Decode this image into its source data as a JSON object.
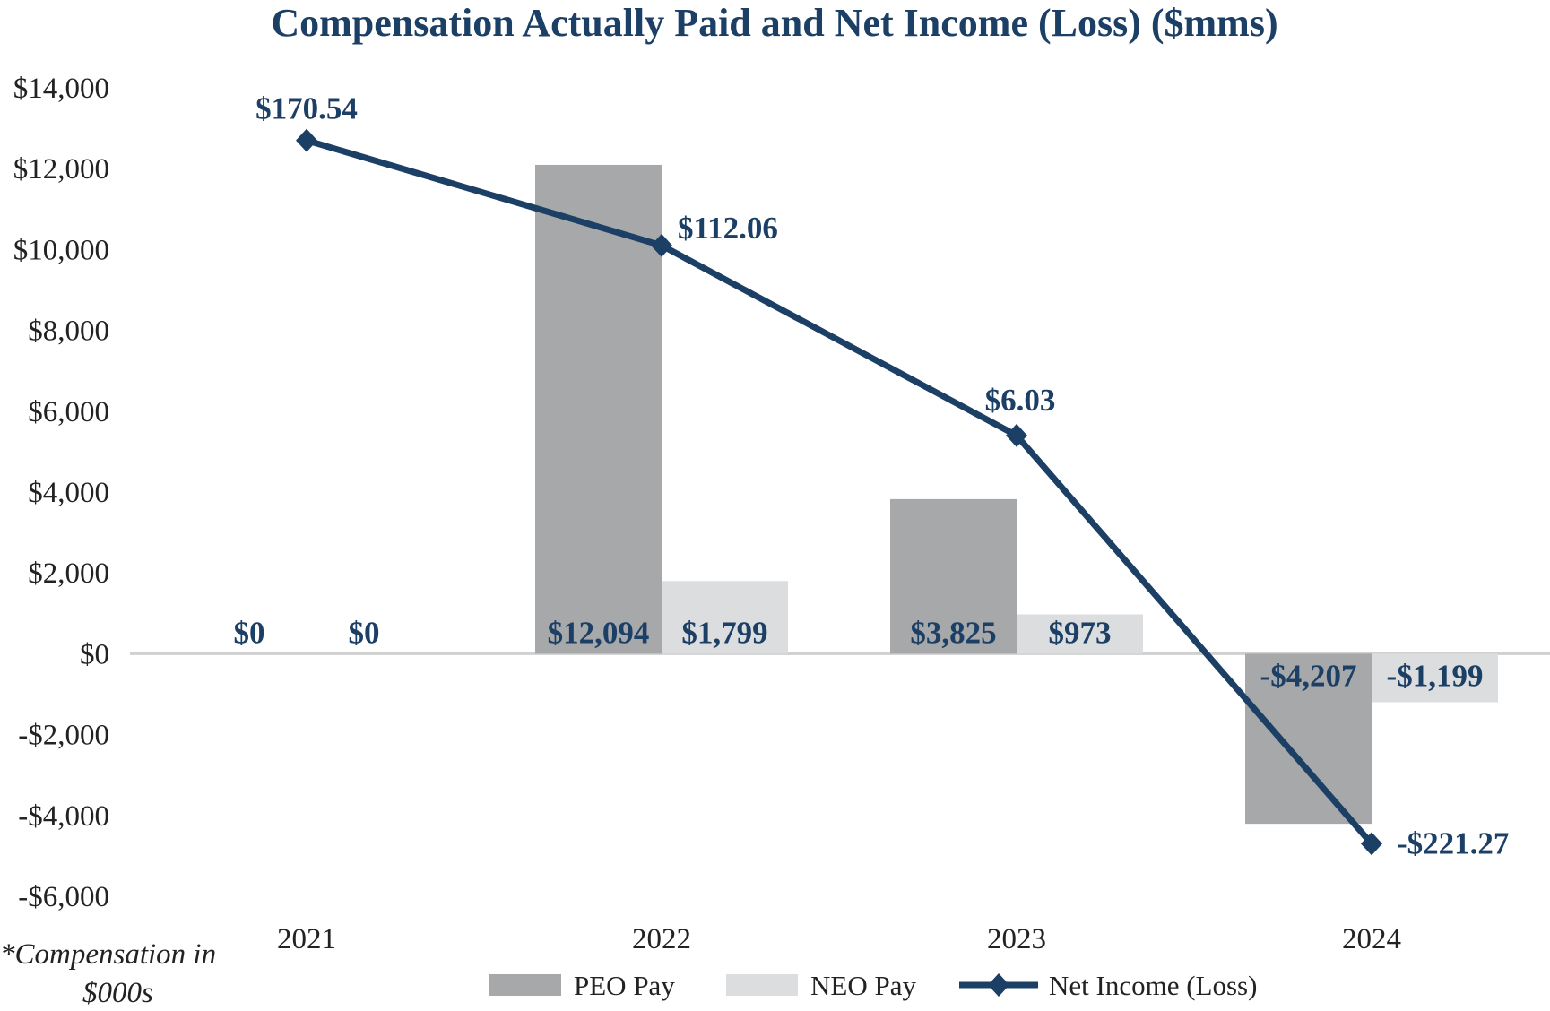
{
  "chart_data": {
    "type": "bar",
    "title": "Compensation Actually Paid and Net Income (Loss) ($mms)",
    "footnote_line1": "*Compensation in",
    "footnote_line2": "$000s",
    "categories": [
      "2021",
      "2022",
      "2023",
      "2024"
    ],
    "ylim": [
      -6000,
      14000
    ],
    "yticks": [
      14000,
      12000,
      10000,
      8000,
      6000,
      4000,
      2000,
      0,
      -2000,
      -4000,
      -6000
    ],
    "ytick_labels": [
      "$14,000",
      "$12,000",
      "$10,000",
      "$8,000",
      "$6,000",
      "$4,000",
      "$2,000",
      "$0",
      "-$2,000",
      "-$4,000",
      "-$6,000"
    ],
    "series": [
      {
        "name": "PEO Pay",
        "kind": "bar",
        "color": "#a7a8aa",
        "values": [
          0,
          12094,
          3825,
          -4207
        ],
        "labels": [
          "$0",
          "$12,094",
          "$3,825",
          "-$4,207"
        ]
      },
      {
        "name": "NEO Pay",
        "kind": "bar",
        "color": "#dcdddf",
        "values": [
          0,
          1799,
          973,
          -1199
        ],
        "labels": [
          "$0",
          "$1,799",
          "$973",
          "-$1,199"
        ]
      },
      {
        "name": "Net Income (Loss)",
        "kind": "line",
        "color": "#1c3f66",
        "values": [
          170.54,
          112.06,
          6.03,
          -221.27
        ],
        "labels": [
          "$170.54",
          "$112.06",
          "$6.03",
          "-$221.27"
        ],
        "plotted_on_compensation_axis": [
          12700,
          10100,
          5400,
          -4700
        ]
      }
    ],
    "text_color": "#1c3f66",
    "axis_text_color": "#222222",
    "zero_line_color": "#d0d0d0",
    "legend_position": "bottom-center",
    "grid": false
  }
}
